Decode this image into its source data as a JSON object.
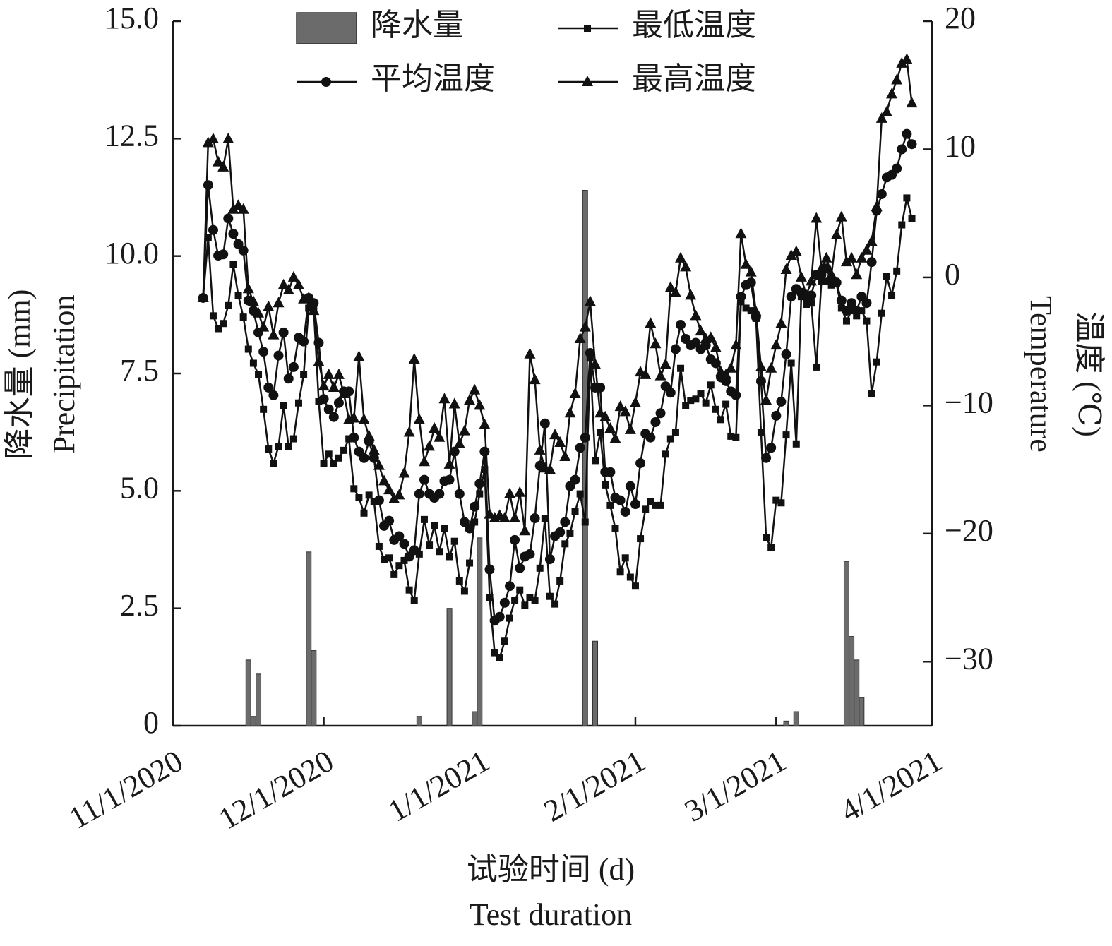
{
  "chart_data": {
    "type": "line",
    "xlabel": [
      "试验时间 (d)",
      "Test duration"
    ],
    "ylabel": [
      "降水量 (mm)",
      "Precipitation"
    ],
    "y2label": [
      "温度 (℃)",
      "Temperature"
    ],
    "xlim": [
      "11/1/2020",
      "4/1/2021"
    ],
    "xticks": [
      "11/1/2020",
      "12/1/2020",
      "1/1/2021",
      "2/1/2021",
      "3/1/2021",
      "4/1/2021"
    ],
    "ylim": [
      0,
      15
    ],
    "yticks": [
      0,
      2.5,
      {
        "value": 5,
        "label": "5.0"
      },
      7.5,
      {
        "value": 10,
        "label": "10.0"
      },
      12.5,
      {
        "value": 15,
        "label": "15.0"
      }
    ],
    "y2lim": [
      -35,
      20
    ],
    "y2ticks": [
      {
        "value": -30,
        "label": "−30"
      },
      {
        "value": -20,
        "label": "−20"
      },
      {
        "value": -10,
        "label": "−10"
      },
      0,
      10,
      20
    ],
    "x": [
      "11/7/2020",
      "11/8/2020",
      "11/9/2020",
      "11/10/2020",
      "11/11/2020",
      "11/12/2020",
      "11/13/2020",
      "11/14/2020",
      "11/15/2020",
      "11/16/2020",
      "11/17/2020",
      "11/18/2020",
      "11/19/2020",
      "11/20/2020",
      "11/21/2020",
      "11/22/2020",
      "11/23/2020",
      "11/24/2020",
      "11/25/2020",
      "11/26/2020",
      "11/27/2020",
      "11/28/2020",
      "11/29/2020",
      "11/30/2020",
      "12/1/2020",
      "12/2/2020",
      "12/3/2020",
      "12/4/2020",
      "12/5/2020",
      "12/6/2020",
      "12/7/2020",
      "12/8/2020",
      "12/9/2020",
      "12/10/2020",
      "12/11/2020",
      "12/12/2020",
      "12/13/2020",
      "12/14/2020",
      "12/15/2020",
      "12/16/2020",
      "12/17/2020",
      "12/18/2020",
      "12/19/2020",
      "12/20/2020",
      "12/21/2020",
      "12/22/2020",
      "12/23/2020",
      "12/24/2020",
      "12/25/2020",
      "12/26/2020",
      "12/27/2020",
      "12/28/2020",
      "12/29/2020",
      "12/30/2020",
      "12/31/2020",
      "1/1/2021",
      "1/2/2021",
      "1/3/2021",
      "1/4/2021",
      "1/5/2021",
      "1/6/2021",
      "1/7/2021",
      "1/8/2021",
      "1/9/2021",
      "1/10/2021",
      "1/11/2021",
      "1/12/2021",
      "1/13/2021",
      "1/14/2021",
      "1/15/2021",
      "1/16/2021",
      "1/17/2021",
      "1/18/2021",
      "1/19/2021",
      "1/20/2021",
      "1/21/2021",
      "1/22/2021",
      "1/23/2021",
      "1/24/2021",
      "1/25/2021",
      "1/26/2021",
      "1/27/2021",
      "1/28/2021",
      "1/29/2021",
      "1/30/2021",
      "1/31/2021",
      "2/1/2021",
      "2/2/2021",
      "2/3/2021",
      "2/4/2021",
      "2/5/2021",
      "2/6/2021",
      "2/7/2021",
      "2/8/2021",
      "2/9/2021",
      "2/10/2021",
      "2/11/2021",
      "2/12/2021",
      "2/13/2021",
      "2/14/2021",
      "2/15/2021",
      "2/16/2021",
      "2/17/2021",
      "2/18/2021",
      "2/19/2021",
      "2/20/2021",
      "2/21/2021",
      "2/22/2021",
      "2/23/2021",
      "2/24/2021",
      "2/25/2021",
      "2/26/2021",
      "2/27/2021",
      "2/28/2021",
      "3/1/2021",
      "3/2/2021",
      "3/3/2021",
      "3/4/2021",
      "3/5/2021",
      "3/6/2021",
      "3/7/2021",
      "3/8/2021",
      "3/9/2021",
      "3/10/2021",
      "3/11/2021",
      "3/12/2021",
      "3/13/2021",
      "3/14/2021",
      "3/15/2021",
      "3/16/2021",
      "3/17/2021",
      "3/18/2021",
      "3/19/2021",
      "3/20/2021",
      "3/21/2021",
      "3/22/2021",
      "3/23/2021",
      "3/24/2021",
      "3/25/2021",
      "3/26/2021",
      "3/27/2021",
      "3/28/2021"
    ],
    "series": [
      {
        "name": "降水量",
        "type": "bar",
        "color": "#6b6b6b",
        "x": [
          "11/16/2020",
          "11/17/2020",
          "11/18/2020",
          "11/28/2020",
          "11/29/2020",
          "12/20/2020",
          "12/26/2020",
          "12/31/2020",
          "1/1/2021",
          "1/22/2021",
          "1/24/2021",
          "3/3/2021",
          "3/5/2021",
          "3/15/2021",
          "3/16/2021",
          "3/17/2021",
          "3/18/2021"
        ],
        "values": [
          1.4,
          0.2,
          1.1,
          3.7,
          1.6,
          0.2,
          2.5,
          0.3,
          4.0,
          11.4,
          1.8,
          0.1,
          0.3,
          3.5,
          1.9,
          1.4,
          0.6
        ]
      },
      {
        "name": "最低温度",
        "type": "line",
        "marker": "square",
        "color": "#111111",
        "axis": "y2",
        "values": [
          -1.6,
          3.1,
          -3.0,
          -4.0,
          -3.6,
          -2.2,
          1.0,
          -1.4,
          -3.1,
          -5.6,
          -6.7,
          -7.6,
          -10.3,
          -13.4,
          -14.5,
          -13.2,
          -10.0,
          -13.2,
          -12.6,
          -9.8,
          -7.6,
          -2.4,
          -2.4,
          -9.7,
          -14.5,
          -13.8,
          -14.5,
          -14.1,
          -13.5,
          -12.6,
          -16.5,
          -17.2,
          -18.4,
          -17.0,
          -17.5,
          -21.0,
          -22.0,
          -21.9,
          -23.2,
          -22.5,
          -22.1,
          -24.4,
          -25.2,
          -21.6,
          -18.9,
          -20.9,
          -19.4,
          -21.4,
          -19.6,
          -21.8,
          -20.6,
          -23.7,
          -24.5,
          -22.3,
          -19.1,
          -16.9,
          -15.0,
          -25.0,
          -29.3,
          -29.7,
          -28.4,
          -26.6,
          -25.2,
          -24.4,
          -25.6,
          -25.0,
          -25.2,
          -22.7,
          -18.8,
          -24.9,
          -25.5,
          -23.7,
          -20.8,
          -20.0,
          -18.3,
          -16.9,
          -19.1,
          -6.3,
          -14.3,
          -12.1,
          -16.2,
          -17.8,
          -19.6,
          -23.0,
          -21.9,
          -23.4,
          -24.1,
          -20.4,
          -18.1,
          -17.5,
          -17.8,
          -17.8,
          -13.8,
          -12.6,
          -12.1,
          -7.1,
          -10.0,
          -9.6,
          -9.5,
          -9.1,
          -9.8,
          -8.4,
          -10.3,
          -11.1,
          -9.9,
          -12.4,
          -12.5,
          -1.9,
          -2.4,
          -2.6,
          -3.2,
          -12.1,
          -20.3,
          -21.1,
          -17.4,
          -17.6,
          -12.3,
          -6.7,
          -13.0,
          -1.5,
          -2.1,
          -2.0,
          -7.0,
          -0.3,
          -0.3,
          -0.6,
          -0.5,
          -2.4,
          -3.4,
          -2.6,
          -3.0,
          -2.6,
          -3.4,
          -9.1,
          -6.6,
          -2.8,
          0.1,
          -1.4,
          0.5,
          4.1,
          6.2,
          4.6
        ]
      },
      {
        "name": "平均温度",
        "type": "line",
        "marker": "circle",
        "color": "#111111",
        "axis": "y2",
        "values": [
          -1.6,
          7.2,
          3.7,
          1.7,
          1.8,
          4.6,
          3.4,
          2.6,
          2.1,
          -1.8,
          -2.6,
          -4.3,
          -5.8,
          -8.6,
          -9.2,
          -6.1,
          -4.3,
          -7.9,
          -7.0,
          -4.7,
          -5.0,
          -1.6,
          -2.0,
          -5.1,
          -9.5,
          -10.3,
          -10.9,
          -9.8,
          -8.9,
          -8.9,
          -12.5,
          -13.6,
          -14.1,
          -12.8,
          -14.1,
          -17.4,
          -19.4,
          -19.0,
          -20.5,
          -20.2,
          -20.8,
          -21.8,
          -21.3,
          -16.9,
          -15.8,
          -16.9,
          -17.2,
          -16.9,
          -15.9,
          -15.8,
          -13.6,
          -16.9,
          -19.1,
          -19.6,
          -17.9,
          -16.1,
          -13.6,
          -22.8,
          -26.8,
          -26.5,
          -25.4,
          -24.1,
          -20.5,
          -22.7,
          -21.8,
          -21.6,
          -18.8,
          -14.7,
          -11.4,
          -22.0,
          -20.2,
          -19.9,
          -19.1,
          -16.3,
          -15.8,
          -13.3,
          -12.5,
          -5.9,
          -8.6,
          -8.6,
          -15.2,
          -15.2,
          -17.2,
          -17.4,
          -18.3,
          -16.3,
          -17.7,
          -14.5,
          -12.2,
          -12.5,
          -11.3,
          -10.6,
          -8.5,
          -9.0,
          -5.6,
          -3.7,
          -4.8,
          -5.3,
          -5.1,
          -5.6,
          -5.3,
          -6.4,
          -6.7,
          -7.8,
          -8.1,
          -8.9,
          -9.2,
          -1.5,
          -0.6,
          -0.4,
          -3.1,
          -8.1,
          -14.1,
          -13.3,
          -10.8,
          -9.7,
          -6.0,
          -1.5,
          -0.9,
          -1.2,
          -1.5,
          -1.4,
          0.2,
          0.2,
          0.7,
          -0.3,
          -0.4,
          -1.8,
          -2.6,
          -2.0,
          -2.6,
          -1.5,
          -2.0,
          1.2,
          5.2,
          6.5,
          7.8,
          8.0,
          8.5,
          10.0,
          11.2,
          10.4
        ]
      },
      {
        "name": "最高温度",
        "type": "line",
        "marker": "triangle",
        "color": "#111111",
        "axis": "y2",
        "values": [
          -1.6,
          10.5,
          10.8,
          9.0,
          8.6,
          10.8,
          5.3,
          5.6,
          5.3,
          -0.9,
          -1.9,
          -2.8,
          -3.9,
          -2.3,
          -4.5,
          -2.0,
          -0.6,
          -1.0,
          0.0,
          -0.6,
          -1.7,
          -1.6,
          -2.6,
          -6.6,
          -8.5,
          -7.6,
          -8.6,
          -7.6,
          -9.1,
          -11.1,
          -11.0,
          -6.2,
          -11.1,
          -12.4,
          -13.5,
          -14.7,
          -15.9,
          -16.6,
          -17.3,
          -17.0,
          -15.3,
          -12.1,
          -6.4,
          -11.1,
          -14.4,
          -13.2,
          -11.8,
          -12.5,
          -9.5,
          -14.6,
          -9.9,
          -13.0,
          -12.0,
          -9.6,
          -8.8,
          -10.0,
          -11.5,
          -18.5,
          -18.8,
          -18.6,
          -18.8,
          -16.9,
          -18.8,
          -16.8,
          -19.8,
          -6.0,
          -8.0,
          -13.5,
          -14.9,
          -15.0,
          -12.3,
          -12.9,
          -14.0,
          -10.6,
          -9.1,
          -4.8,
          -3.9,
          -1.9,
          -6.8,
          -10.6,
          -10.9,
          -11.8,
          -12.6,
          -10.1,
          -10.5,
          -11.9,
          -9.8,
          -7.4,
          -7.6,
          -3.6,
          -5.2,
          -7.7,
          -6.8,
          -0.8,
          -1.2,
          1.5,
          0.8,
          -1.4,
          -3.0,
          -4.2,
          -4.8,
          -4.7,
          -5.5,
          -7.4,
          -7.6,
          -7.1,
          -5.3,
          3.4,
          1.0,
          0.4,
          -2.7,
          -7.0,
          -9.6,
          -7.1,
          -5.3,
          -3.6,
          0.6,
          1.7,
          2.0,
          0.0,
          -1.4,
          -0.3,
          4.6,
          0.7,
          1.5,
          0.2,
          3.3,
          4.7,
          1.2,
          1.5,
          0.2,
          1.5,
          2.1,
          2.8,
          5.5,
          12.4,
          12.9,
          14.3,
          15.4,
          16.7,
          17.0,
          13.6
        ]
      }
    ]
  }
}
